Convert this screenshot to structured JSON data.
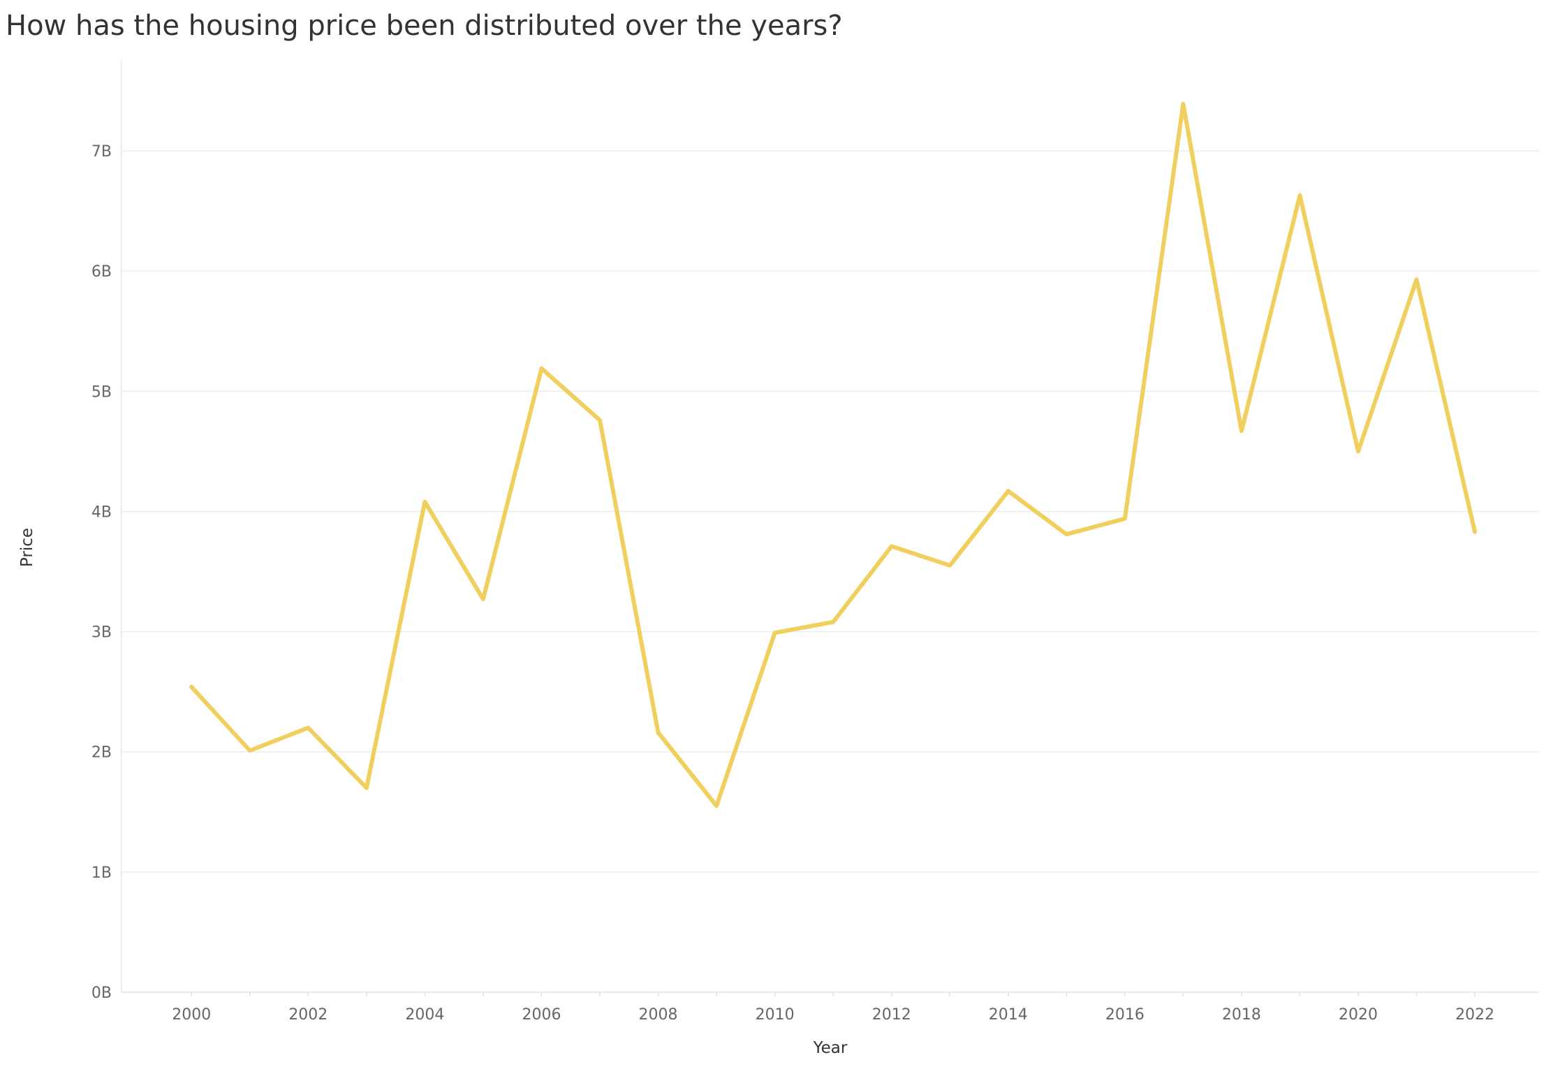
{
  "chart_data": {
    "type": "line",
    "title": "How has the housing price been distributed over the years?",
    "xlabel": "Year",
    "ylabel": "Price",
    "x": [
      2000,
      2001,
      2002,
      2003,
      2004,
      2005,
      2006,
      2007,
      2008,
      2009,
      2010,
      2011,
      2012,
      2013,
      2014,
      2015,
      2016,
      2017,
      2018,
      2019,
      2020,
      2021,
      2022
    ],
    "series": [
      {
        "values": [
          2.54,
          2.01,
          2.2,
          1.7,
          4.08,
          3.27,
          5.19,
          4.76,
          2.16,
          1.55,
          2.99,
          3.08,
          3.71,
          3.55,
          4.17,
          3.81,
          3.94,
          7.39,
          4.67,
          6.63,
          4.5,
          5.93,
          3.83
        ],
        "color": "#f0cf5e"
      }
    ],
    "value_unit": "billions",
    "xlim": [
      1998.8,
      2023.1
    ],
    "ylim": [
      0,
      7.75
    ],
    "x_ticks": [
      "2000",
      "2002",
      "2004",
      "2006",
      "2008",
      "2010",
      "2012",
      "2014",
      "2016",
      "2018",
      "2020",
      "2022"
    ],
    "y_ticks": [
      "0B",
      "1B",
      "2B",
      "3B",
      "4B",
      "5B",
      "6B",
      "7B"
    ],
    "grid": true,
    "legend": "none",
    "colors": {
      "line": "#f0cf5e",
      "grid": "#eeeeee",
      "tick_label": "#666666",
      "title": "#333333"
    }
  }
}
